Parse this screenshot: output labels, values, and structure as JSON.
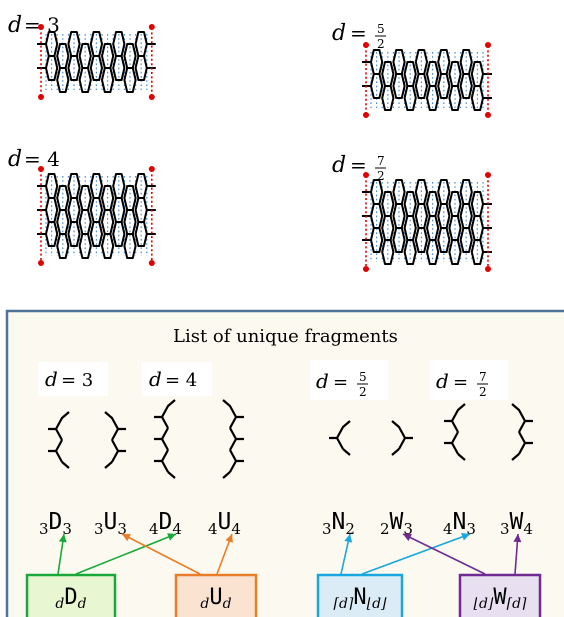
{
  "lattices": [
    {
      "label_text": "d = 3",
      "rows": 2,
      "cols": 9
    },
    {
      "label_text": "d = 5/2",
      "rows": 2,
      "cols": 10
    },
    {
      "label_text": "d = 4",
      "rows": 3,
      "cols": 9
    },
    {
      "label_text": "d = 7/2",
      "rows": 3,
      "cols": 10
    }
  ],
  "panel": {
    "title": "List of unique fragments",
    "groups": [
      {
        "label": "d = 3"
      },
      {
        "label": "d = 4"
      },
      {
        "label": "d = 5/2"
      },
      {
        "label": "d = 7/2"
      }
    ],
    "fragments": [
      {
        "pre": "3",
        "letter": "D",
        "post": "3"
      },
      {
        "pre": "3",
        "letter": "U",
        "post": "3"
      },
      {
        "pre": "4",
        "letter": "D",
        "post": "4"
      },
      {
        "pre": "4",
        "letter": "U",
        "post": "4"
      },
      {
        "pre": "3",
        "letter": "N",
        "post": "2"
      },
      {
        "pre": "2",
        "letter": "W",
        "post": "3"
      },
      {
        "pre": "4",
        "letter": "N",
        "post": "3"
      },
      {
        "pre": "3",
        "letter": "W",
        "post": "4"
      }
    ],
    "boxes": [
      {
        "pre": "d",
        "letter": "D",
        "post": "d",
        "color": "#1aa83a",
        "fill": "#e9f6d2"
      },
      {
        "pre": "d",
        "letter": "U",
        "post": "d",
        "color": "#ea7d2a",
        "fill": "#fbe3d2"
      },
      {
        "pre": "⌈d⌉",
        "letter": "N",
        "post": "⌊d⌋",
        "color": "#1aa6df",
        "fill": "#dcecf7"
      },
      {
        "pre": "⌊d⌋",
        "letter": "W",
        "post": "⌈d⌉",
        "color": "#6f2b92",
        "fill": "#e8dff0"
      }
    ]
  },
  "colors": {
    "panel_border": "#4f7497",
    "panel_fill": "#fcfaf0",
    "dotted": "#4a8fd6",
    "boundary": "#e00000"
  }
}
